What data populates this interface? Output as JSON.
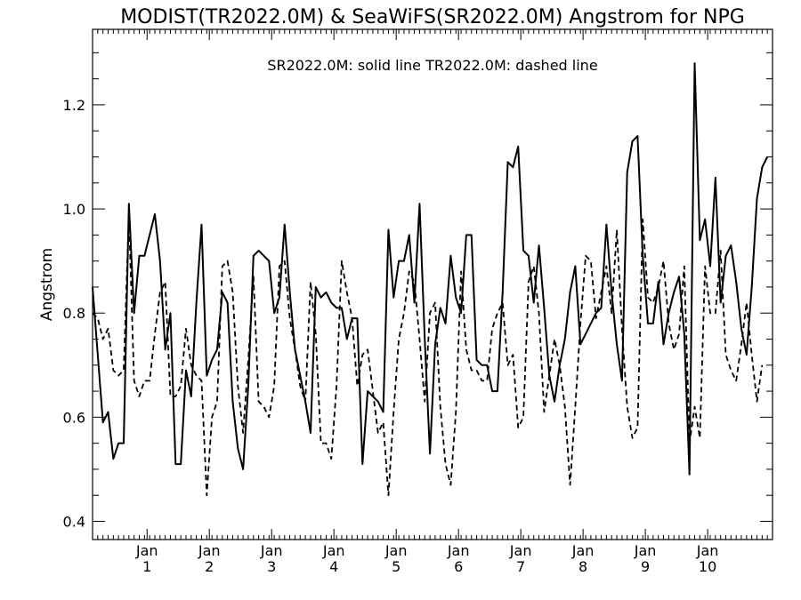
{
  "chart_data": {
    "type": "line",
    "title": "MODIST(TR2022.0M) & SeaWiFS(SR2022.0M)  Angstrom for NPG",
    "annotation": "SR2022.0M: solid line   TR2022.0M: dashed line",
    "ylabel": "Angstrom",
    "xlabel": "",
    "xlim": [
      0,
      131
    ],
    "ylim": [
      0.365,
      1.345
    ],
    "yticks": [
      0.4,
      0.6,
      0.8,
      1.0,
      1.2
    ],
    "ytick_labels": [
      "0.4",
      "0.6",
      "0.8",
      "1.0",
      "1.2"
    ],
    "yminor_step": 0.05,
    "xticks": [
      {
        "x": 10.5,
        "month": "Jan",
        "year": "1"
      },
      {
        "x": 22.5,
        "month": "Jan",
        "year": "2"
      },
      {
        "x": 34.5,
        "month": "Jan",
        "year": "3"
      },
      {
        "x": 46.5,
        "month": "Jan",
        "year": "4"
      },
      {
        "x": 58.5,
        "month": "Jan",
        "year": "5"
      },
      {
        "x": 70.5,
        "month": "Jan",
        "year": "6"
      },
      {
        "x": 82.5,
        "month": "Jan",
        "year": "7"
      },
      {
        "x": 94.5,
        "month": "Jan",
        "year": "8"
      },
      {
        "x": 106.5,
        "month": "Jan",
        "year": "9"
      },
      {
        "x": 118.5,
        "month": "Jan",
        "year": "10"
      }
    ],
    "x_minor_step": 1,
    "grid": false,
    "series": [
      {
        "name": "SR2022.0M",
        "style": "solid",
        "x_start": 0,
        "values": [
          0.85,
          0.72,
          0.59,
          0.61,
          0.52,
          0.55,
          0.55,
          1.01,
          0.8,
          0.91,
          0.91,
          0.95,
          0.99,
          0.9,
          0.73,
          0.8,
          0.51,
          0.51,
          0.69,
          0.64,
          0.82,
          0.97,
          0.68,
          0.71,
          0.73,
          0.84,
          0.82,
          0.63,
          0.54,
          0.5,
          0.66,
          0.91,
          0.92,
          0.91,
          0.9,
          0.8,
          0.83,
          0.97,
          0.84,
          0.73,
          0.68,
          0.63,
          0.57,
          0.85,
          0.83,
          0.84,
          0.82,
          0.81,
          0.81,
          0.75,
          0.79,
          0.79,
          0.51,
          0.65,
          0.64,
          0.63,
          0.61,
          0.96,
          0.83,
          0.9,
          0.9,
          0.95,
          0.82,
          1.01,
          0.75,
          0.53,
          0.74,
          0.81,
          0.78,
          0.91,
          0.83,
          0.8,
          0.95,
          0.95,
          0.71,
          0.7,
          0.7,
          0.65,
          0.65,
          0.84,
          1.09,
          1.08,
          1.12,
          0.92,
          0.91,
          0.82,
          0.93,
          0.81,
          0.68,
          0.63,
          0.7,
          0.75,
          0.84,
          0.89,
          0.74,
          0.76,
          0.78,
          0.8,
          0.81,
          0.97,
          0.84,
          0.74,
          0.67,
          1.07,
          1.13,
          1.14,
          0.91,
          0.78,
          0.78,
          0.86,
          0.74,
          0.8,
          0.84,
          0.87,
          0.76,
          0.49,
          1.28,
          0.94,
          0.98,
          0.89,
          1.06,
          0.82,
          0.91,
          0.93,
          0.86,
          0.77,
          0.72,
          0.85,
          1.02,
          1.08,
          1.1
        ]
      },
      {
        "name": "TR2022.0M",
        "style": "dashed",
        "x_start": 0,
        "values": [
          0.8,
          0.79,
          0.75,
          0.77,
          0.69,
          0.68,
          0.69,
          0.99,
          0.67,
          0.64,
          0.67,
          0.67,
          0.76,
          0.84,
          0.86,
          0.64,
          0.64,
          0.66,
          0.77,
          0.7,
          0.68,
          0.67,
          0.45,
          0.6,
          0.63,
          0.89,
          0.9,
          0.84,
          0.66,
          0.57,
          0.71,
          0.87,
          0.63,
          0.62,
          0.6,
          0.66,
          0.89,
          0.9,
          0.79,
          0.73,
          0.66,
          0.63,
          0.86,
          0.76,
          0.55,
          0.55,
          0.52,
          0.66,
          0.9,
          0.84,
          0.79,
          0.66,
          0.72,
          0.73,
          0.65,
          0.57,
          0.59,
          0.45,
          0.61,
          0.75,
          0.8,
          0.88,
          0.86,
          0.75,
          0.63,
          0.8,
          0.82,
          0.62,
          0.51,
          0.47,
          0.61,
          0.88,
          0.73,
          0.69,
          0.69,
          0.67,
          0.67,
          0.77,
          0.8,
          0.82,
          0.7,
          0.72,
          0.58,
          0.6,
          0.86,
          0.89,
          0.8,
          0.61,
          0.68,
          0.75,
          0.7,
          0.62,
          0.47,
          0.62,
          0.78,
          0.91,
          0.9,
          0.79,
          0.84,
          0.89,
          0.8,
          0.96,
          0.77,
          0.62,
          0.56,
          0.58,
          0.98,
          0.83,
          0.82,
          0.85,
          0.9,
          0.78,
          0.73,
          0.76,
          0.89,
          0.55,
          0.62,
          0.56,
          0.89,
          0.8,
          0.8,
          0.92,
          0.72,
          0.69,
          0.67,
          0.74,
          0.82,
          0.72,
          0.63,
          0.7
        ]
      }
    ]
  }
}
